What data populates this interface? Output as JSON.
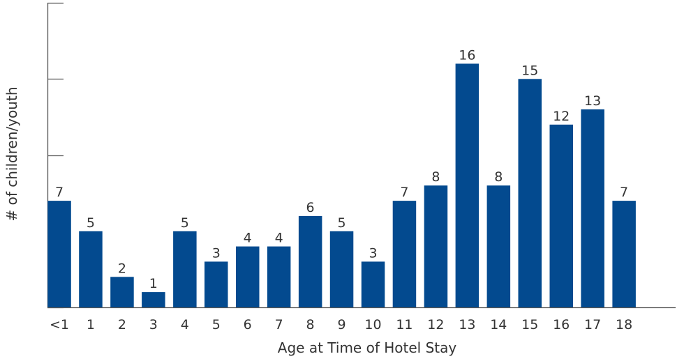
{
  "chart_data": {
    "type": "bar",
    "xlabel": "Age at Time of Hotel Stay",
    "ylabel": "# of children/youth",
    "categories": [
      "<1",
      "1",
      "2",
      "3",
      "4",
      "5",
      "6",
      "7",
      "8",
      "9",
      "10",
      "11",
      "12",
      "13",
      "14",
      "15",
      "16",
      "17",
      "18"
    ],
    "values": [
      7,
      5,
      2,
      1,
      5,
      3,
      4,
      4,
      6,
      5,
      3,
      7,
      8,
      16,
      8,
      15,
      12,
      13,
      7
    ],
    "value_labels": [
      "7",
      "5",
      "2",
      "1",
      "5",
      "3",
      "4",
      "4",
      "6",
      "5",
      "3",
      "7",
      "8",
      "16",
      "8",
      "15",
      "12",
      "13",
      "7"
    ],
    "ylim": [
      0,
      20
    ],
    "y_tick_marks": [
      0,
      5,
      10,
      15,
      20
    ],
    "y_tick_labels_shown": false,
    "grid": false,
    "legend": "none",
    "colors": {
      "bar": "#034a8f",
      "axis": "#555555",
      "text": "#333333"
    }
  }
}
